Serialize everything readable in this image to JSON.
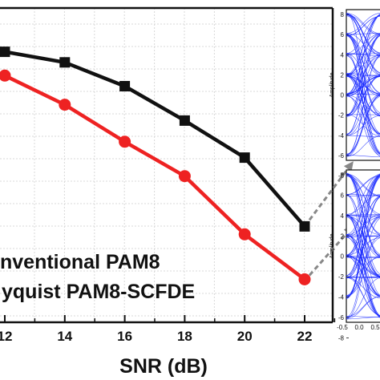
{
  "colors": {
    "series_black": "#111111",
    "series_red": "#ee2222",
    "arrow": "#888888",
    "eye_blue": "#1a2bff",
    "grid": "#d8d8d8"
  },
  "chart_data": {
    "type": "line",
    "xlabel": "SNR (dB)",
    "ylabel": "",
    "x": [
      12,
      14,
      16,
      18,
      20,
      22
    ],
    "x_tick_labels": [
      "12",
      "14",
      "16",
      "18",
      "20",
      "22"
    ],
    "xlim": [
      12,
      23
    ],
    "ylim": [
      0,
      1
    ],
    "grid": true,
    "legend_position": "bottom-left",
    "legend_entries": [
      "nventional PAM8",
      "yquist PAM8-SCFDE"
    ],
    "series": [
      {
        "name": "nventional PAM8",
        "marker": "square",
        "color": "#111111",
        "values": [
          0.88,
          0.84,
          0.75,
          0.62,
          0.48,
          0.22
        ]
      },
      {
        "name": "yquist PAM8-SCFDE",
        "marker": "circle",
        "color": "#ee2222",
        "values": [
          0.79,
          0.68,
          0.54,
          0.41,
          0.19,
          0.02
        ]
      }
    ],
    "insets": [
      {
        "ylabel": "Amplitude",
        "y_ticks": [
          "8",
          "6",
          "4",
          "2",
          "0",
          "-2",
          "-4",
          "-6",
          "-8"
        ]
      },
      {
        "ylabel": "Amplitude",
        "y_ticks": [
          "8",
          "6",
          "4",
          "2",
          "0",
          "-2",
          "-4",
          "-6",
          "-8"
        ],
        "x_tick_labels": [
          "-0.5",
          "0.0",
          "0.5"
        ]
      }
    ]
  }
}
